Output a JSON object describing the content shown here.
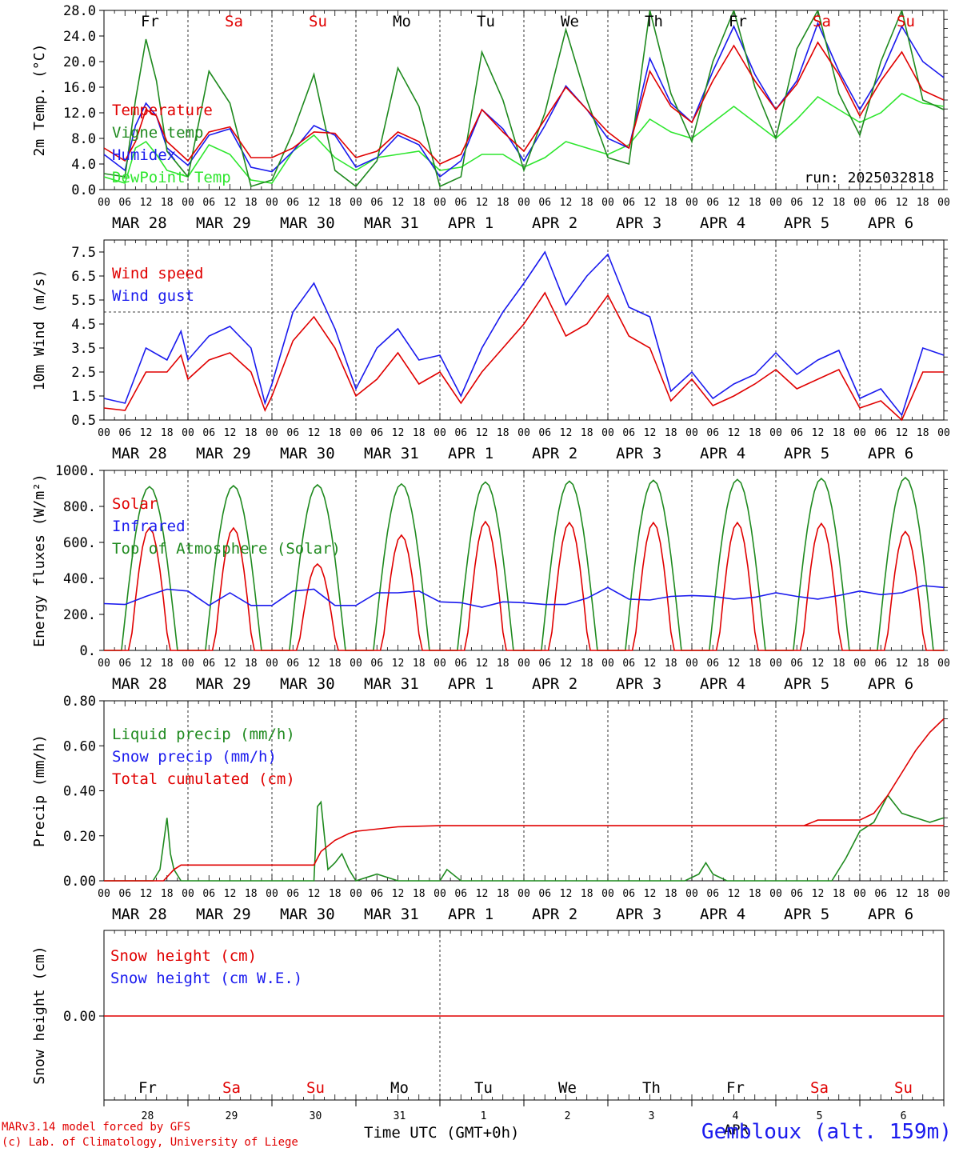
{
  "run_label": "run: 2025032818",
  "footer": {
    "model": "MARv3.14 model forced by GFS",
    "credit": "(c) Lab. of Climatology, University of Liege",
    "time_label": "Time UTC (GMT+0h)",
    "station": "Gembloux (alt. 159m)",
    "overlap_label": "APR"
  },
  "colors": {
    "red": "#e00000",
    "green": "#1f8a1f",
    "blue": "#1a1aee",
    "lightgreen": "#2ee62e",
    "weekend": "#e00000",
    "weekday": "#000000"
  },
  "days": [
    {
      "dow": "Fr",
      "date": "MAR 28",
      "num": "28",
      "weekend": false
    },
    {
      "dow": "Sa",
      "date": "MAR 29",
      "num": "29",
      "weekend": true
    },
    {
      "dow": "Su",
      "date": "MAR 30",
      "num": "30",
      "weekend": true
    },
    {
      "dow": "Mo",
      "date": "MAR 31",
      "num": "31",
      "weekend": false
    },
    {
      "dow": "Tu",
      "date": "APR  1",
      "num": "1",
      "weekend": false
    },
    {
      "dow": "We",
      "date": "APR  2",
      "num": "2",
      "weekend": false
    },
    {
      "dow": "Th",
      "date": "APR  3",
      "num": "3",
      "weekend": false
    },
    {
      "dow": "Fr",
      "date": "APR  4",
      "num": "4",
      "weekend": false
    },
    {
      "dow": "Sa",
      "date": "APR  5",
      "num": "5",
      "weekend": true
    },
    {
      "dow": "Su",
      "date": "APR  6",
      "num": "6",
      "weekend": true
    }
  ],
  "hour_ticks": [
    "00",
    "06",
    "12",
    "18"
  ],
  "chart_data": [
    {
      "type": "line",
      "ylabel": "2m Temp. (°C)",
      "ylim": [
        0,
        28
      ],
      "yticks": [
        "0.0",
        "4.0",
        "8.0",
        "12.0",
        "16.0",
        "20.0",
        "24.0",
        "28.0"
      ],
      "x_hours": [
        0,
        6,
        9,
        12,
        15,
        18,
        24,
        30,
        36,
        42,
        48,
        54,
        60,
        66,
        72,
        78,
        84,
        90,
        96,
        102,
        108,
        114,
        120,
        126,
        132,
        138,
        144,
        150,
        156,
        162,
        168,
        174,
        180,
        186,
        192,
        198,
        204,
        210,
        216,
        222,
        228,
        234,
        240
      ],
      "series": [
        {
          "name": "Temperature",
          "color": "red",
          "values": [
            6.5,
            4.5,
            7.5,
            12.5,
            11.5,
            7.5,
            4.5,
            9.0,
            9.8,
            5.0,
            5.0,
            6.5,
            9.0,
            8.8,
            5.0,
            6.0,
            9.0,
            7.5,
            4.0,
            5.5,
            12.5,
            9.0,
            6.0,
            11.0,
            16.0,
            12.5,
            9.0,
            6.5,
            18.5,
            13.0,
            10.5,
            17.0,
            22.5,
            17.0,
            12.5,
            16.5,
            23.0,
            18.0,
            11.5,
            17.0,
            21.5,
            15.5,
            14.0
          ]
        },
        {
          "name": "Vigne temp",
          "color": "green",
          "values": [
            2.5,
            2.0,
            14.0,
            23.5,
            17.0,
            6.0,
            2.0,
            18.5,
            13.5,
            0.5,
            1.5,
            9.0,
            18.0,
            3.0,
            0.5,
            4.5,
            19.0,
            13.0,
            0.5,
            2.0,
            21.5,
            14.0,
            3.0,
            12.0,
            25.0,
            14.0,
            5.0,
            4.0,
            28.0,
            15.0,
            7.5,
            20.0,
            28.0,
            16.0,
            8.0,
            22.0,
            28.0,
            15.0,
            8.5,
            20.0,
            28.0,
            14.0,
            12.5
          ]
        },
        {
          "name": "Humidex",
          "color": "blue",
          "values": [
            5.5,
            3.0,
            10.0,
            13.5,
            11.5,
            6.5,
            3.8,
            8.5,
            9.5,
            3.5,
            2.8,
            6.0,
            10.0,
            8.5,
            3.5,
            5.0,
            8.5,
            7.0,
            2.0,
            4.5,
            12.5,
            9.5,
            4.5,
            10.0,
            16.2,
            12.5,
            8.0,
            6.5,
            20.5,
            13.5,
            10.5,
            18.5,
            25.5,
            18.0,
            12.5,
            17.0,
            26.0,
            18.5,
            12.5,
            18.0,
            25.5,
            20.0,
            17.5
          ]
        },
        {
          "name": "DewPoint Temp",
          "color": "lightgreen",
          "values": [
            2.0,
            1.0,
            6.5,
            7.5,
            5.5,
            3.0,
            2.0,
            7.0,
            5.5,
            1.5,
            1.0,
            6.0,
            8.5,
            5.0,
            3.0,
            5.0,
            5.5,
            6.0,
            3.0,
            3.5,
            5.5,
            5.5,
            3.5,
            5.0,
            7.5,
            6.5,
            5.5,
            7.0,
            11.0,
            9.0,
            8.0,
            10.5,
            13.0,
            10.5,
            8.0,
            11.0,
            14.5,
            12.5,
            10.5,
            12.0,
            15.0,
            13.5,
            13.0
          ]
        }
      ]
    },
    {
      "type": "line",
      "ylabel": "10m Wind (m/s)",
      "ylim": [
        0.5,
        8.0
      ],
      "yticks": [
        "0.5",
        "1.5",
        "2.5",
        "3.5",
        "4.5",
        "5.5",
        "6.5",
        "7.5"
      ],
      "threshold": 5.0,
      "x_hours": [
        0,
        6,
        12,
        18,
        22,
        24,
        30,
        36,
        42,
        46,
        48,
        54,
        60,
        66,
        72,
        78,
        84,
        90,
        96,
        102,
        108,
        114,
        120,
        126,
        132,
        138,
        144,
        150,
        156,
        162,
        168,
        174,
        180,
        186,
        192,
        198,
        204,
        210,
        216,
        222,
        228,
        234,
        240
      ],
      "series": [
        {
          "name": "Wind speed",
          "color": "red",
          "values": [
            1.0,
            0.9,
            2.5,
            2.5,
            3.2,
            2.2,
            3.0,
            3.3,
            2.5,
            0.9,
            1.5,
            3.8,
            4.8,
            3.5,
            1.5,
            2.2,
            3.3,
            2.0,
            2.5,
            1.2,
            2.5,
            3.5,
            4.5,
            5.8,
            4.0,
            4.5,
            5.7,
            4.0,
            3.5,
            1.3,
            2.2,
            1.1,
            1.5,
            2.0,
            2.6,
            1.8,
            2.2,
            2.6,
            1.0,
            1.3,
            0.5,
            2.5,
            2.5
          ]
        },
        {
          "name": "Wind gust",
          "color": "blue",
          "values": [
            1.4,
            1.2,
            3.5,
            3.0,
            4.2,
            3.0,
            4.0,
            4.4,
            3.5,
            1.2,
            2.0,
            5.0,
            6.2,
            4.3,
            1.8,
            3.5,
            4.3,
            3.0,
            3.2,
            1.5,
            3.5,
            5.0,
            6.2,
            7.5,
            5.3,
            6.5,
            7.4,
            5.2,
            4.8,
            1.7,
            2.5,
            1.4,
            2.0,
            2.4,
            3.3,
            2.4,
            3.0,
            3.4,
            1.4,
            1.8,
            0.7,
            3.5,
            3.2
          ]
        }
      ]
    },
    {
      "type": "line",
      "ylabel": "Energy fluxes (W/m²)",
      "ylim": [
        0,
        1000
      ],
      "yticks": [
        "0.",
        "200.",
        "400.",
        "600.",
        "800.",
        "1000."
      ],
      "series": [
        {
          "name": "Solar",
          "color": "red",
          "peak_hour": 13,
          "peak_values": [
            680,
            680,
            480,
            640,
            715,
            710,
            710,
            710,
            705,
            660
          ]
        },
        {
          "name": "Infrared",
          "color": "blue",
          "x_hours": [
            0,
            6,
            12,
            18,
            24,
            30,
            36,
            42,
            48,
            54,
            60,
            66,
            72,
            78,
            84,
            90,
            96,
            102,
            108,
            114,
            120,
            126,
            132,
            138,
            144,
            150,
            156,
            162,
            168,
            174,
            180,
            186,
            192,
            198,
            204,
            210,
            216,
            222,
            228,
            234,
            240
          ],
          "values": [
            260,
            255,
            300,
            340,
            330,
            250,
            320,
            250,
            250,
            330,
            340,
            250,
            250,
            320,
            320,
            330,
            270,
            265,
            240,
            270,
            265,
            255,
            255,
            290,
            350,
            285,
            280,
            300,
            305,
            300,
            285,
            295,
            320,
            300,
            285,
            305,
            330,
            310,
            320,
            360,
            350
          ]
        },
        {
          "name": "Top of Atmosphere (Solar)",
          "color": "green",
          "peak_hour": 13,
          "peak_values": [
            910,
            915,
            920,
            925,
            935,
            940,
            945,
            950,
            955,
            960
          ]
        }
      ]
    },
    {
      "type": "line",
      "ylabel": "Precip (mm/h)",
      "ylim": [
        0,
        0.8
      ],
      "yticks": [
        "0.00",
        "0.20",
        "0.40",
        "0.60",
        "0.80"
      ],
      "series": [
        {
          "name": "Liquid precip (mm/h)",
          "color": "green",
          "x_hours": [
            0,
            14,
            16,
            18,
            19,
            20,
            22,
            24,
            60,
            61,
            62,
            63,
            64,
            66,
            68,
            70,
            72,
            78,
            84,
            90,
            96,
            98,
            102,
            144,
            146,
            148,
            150,
            156,
            166,
            170,
            172,
            174,
            178,
            180,
            182,
            186,
            190,
            192,
            196,
            200,
            204,
            206,
            208,
            212,
            216,
            220,
            224,
            228,
            232,
            236,
            240
          ],
          "values": [
            0,
            0,
            0.05,
            0.28,
            0.12,
            0.05,
            0,
            0,
            0,
            0.33,
            0.35,
            0.2,
            0.05,
            0.08,
            0.12,
            0.05,
            0,
            0.03,
            0,
            0,
            0,
            0.05,
            0,
            0,
            0,
            0,
            0,
            0,
            0,
            0.03,
            0.08,
            0.03,
            0,
            0,
            0,
            0,
            0,
            0,
            0,
            0,
            0,
            0,
            0,
            0.1,
            0.22,
            0.26,
            0.38,
            0.3,
            0.28,
            0.26,
            0.28
          ]
        },
        {
          "name": "Snow precip (mm/h)",
          "color": "blue",
          "values": []
        },
        {
          "name": "Total cumulated (cm)",
          "color": "red",
          "x_hours": [
            0,
            17,
            20,
            22,
            60,
            62,
            66,
            70,
            72,
            84,
            96,
            240
          ],
          "values": [
            0,
            0,
            0.05,
            0.07,
            0.07,
            0.13,
            0.18,
            0.21,
            0.22,
            0.24,
            0.245,
            0.245
          ],
          "tail_hours": [
            200,
            204,
            208,
            212,
            216,
            220,
            224,
            228,
            232,
            236,
            240
          ],
          "tail_values": [
            0.245,
            0.27,
            0.27,
            0.27,
            0.27,
            0.3,
            0.38,
            0.48,
            0.58,
            0.66,
            0.72
          ]
        }
      ]
    },
    {
      "type": "line",
      "ylabel": "Snow height (cm)",
      "yticks": [
        "0.00"
      ],
      "series": [
        {
          "name": "Snow height (cm)",
          "color": "red",
          "values": [
            0,
            0
          ]
        },
        {
          "name": "Snow height (cm W.E.)",
          "color": "blue",
          "values": [
            0,
            0
          ]
        }
      ]
    }
  ]
}
